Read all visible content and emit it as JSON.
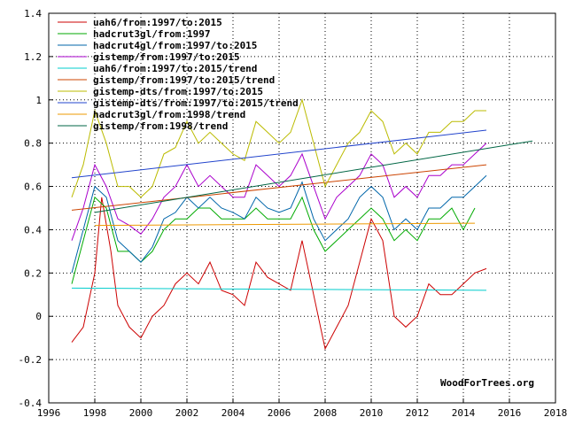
{
  "chart_data": {
    "type": "line",
    "title": "",
    "xlabel": "",
    "ylabel": "",
    "xlim": [
      1996,
      2018
    ],
    "ylim": [
      -0.4,
      1.4
    ],
    "x_ticks": [
      1996,
      1998,
      2000,
      2002,
      2004,
      2006,
      2008,
      2010,
      2012,
      2014,
      2016,
      2018
    ],
    "y_ticks": [
      -0.4,
      -0.2,
      0,
      0.2,
      0.4,
      0.6,
      0.8,
      1.0,
      1.2,
      1.4
    ],
    "x_tick_labels": [
      "1996",
      "1998",
      "2000",
      "2002",
      "2004",
      "2006",
      "2008",
      "2010",
      "2012",
      "2014",
      "2016",
      "2018"
    ],
    "y_tick_labels": [
      "-0.4",
      "-0.2",
      "0",
      "0.2",
      "0.4",
      "0.6",
      "0.8",
      "1",
      "1.2",
      "1.4"
    ],
    "grid": true,
    "legend_position": "top-left",
    "credit": "WoodForTrees.org",
    "series": [
      {
        "name": "uah6/from:1997/to:2015",
        "kind": "monthly",
        "color": "#cc0000",
        "x": [
          1997.0,
          1997.5,
          1998.0,
          1998.3,
          1998.7,
          1999.0,
          1999.5,
          2000.0,
          2000.5,
          2001.0,
          2001.5,
          2002.0,
          2002.5,
          2003.0,
          2003.5,
          2004.0,
          2004.5,
          2005.0,
          2005.5,
          2006.0,
          2006.5,
          2007.0,
          2007.5,
          2008.0,
          2008.5,
          2009.0,
          2009.5,
          2010.0,
          2010.5,
          2011.0,
          2011.5,
          2012.0,
          2012.5,
          2013.0,
          2013.5,
          2014.0,
          2014.5,
          2015.0
        ],
        "y": [
          -0.12,
          -0.05,
          0.2,
          0.55,
          0.3,
          0.05,
          -0.05,
          -0.1,
          0.0,
          0.05,
          0.15,
          0.2,
          0.15,
          0.25,
          0.12,
          0.1,
          0.05,
          0.25,
          0.18,
          0.15,
          0.12,
          0.35,
          0.1,
          -0.15,
          -0.05,
          0.05,
          0.25,
          0.45,
          0.35,
          0.0,
          -0.05,
          0.0,
          0.15,
          0.1,
          0.1,
          0.15,
          0.2,
          0.22
        ]
      },
      {
        "name": "hadcrut3gl/from:1997",
        "kind": "monthly",
        "color": "#00aa00",
        "x": [
          1997.0,
          1997.5,
          1998.0,
          1998.5,
          1999.0,
          1999.5,
          2000.0,
          2000.5,
          2001.0,
          2001.5,
          2002.0,
          2002.5,
          2003.0,
          2003.5,
          2004.0,
          2004.5,
          2005.0,
          2005.5,
          2006.0,
          2006.5,
          2007.0,
          2007.5,
          2008.0,
          2008.5,
          2009.0,
          2009.5,
          2010.0,
          2010.5,
          2011.0,
          2011.5,
          2012.0,
          2012.5,
          2013.0,
          2013.5,
          2014.0,
          2014.5
        ],
        "y": [
          0.15,
          0.35,
          0.55,
          0.5,
          0.3,
          0.3,
          0.25,
          0.3,
          0.4,
          0.45,
          0.45,
          0.5,
          0.5,
          0.45,
          0.45,
          0.45,
          0.5,
          0.45,
          0.45,
          0.45,
          0.55,
          0.4,
          0.3,
          0.35,
          0.4,
          0.45,
          0.5,
          0.45,
          0.35,
          0.4,
          0.35,
          0.45,
          0.45,
          0.5,
          0.4,
          0.5
        ]
      },
      {
        "name": "hadcrut4gl/from:1997/to:2015",
        "kind": "monthly",
        "color": "#0066aa",
        "x": [
          1997.0,
          1997.5,
          1998.0,
          1998.5,
          1999.0,
          1999.5,
          2000.0,
          2000.5,
          2001.0,
          2001.5,
          2002.0,
          2002.5,
          2003.0,
          2003.5,
          2004.0,
          2004.5,
          2005.0,
          2005.5,
          2006.0,
          2006.5,
          2007.0,
          2007.5,
          2008.0,
          2008.5,
          2009.0,
          2009.5,
          2010.0,
          2010.5,
          2011.0,
          2011.5,
          2012.0,
          2012.5,
          2013.0,
          2013.5,
          2014.0,
          2014.5,
          2015.0
        ],
        "y": [
          0.2,
          0.4,
          0.6,
          0.55,
          0.35,
          0.3,
          0.25,
          0.32,
          0.45,
          0.48,
          0.55,
          0.5,
          0.55,
          0.5,
          0.48,
          0.45,
          0.55,
          0.5,
          0.48,
          0.5,
          0.62,
          0.45,
          0.35,
          0.4,
          0.45,
          0.55,
          0.6,
          0.55,
          0.4,
          0.45,
          0.4,
          0.5,
          0.5,
          0.55,
          0.55,
          0.6,
          0.65
        ]
      },
      {
        "name": "gistemp/from:1997/to:2015",
        "kind": "monthly",
        "color": "#aa00cc",
        "x": [
          1997.0,
          1997.5,
          1998.0,
          1998.5,
          1999.0,
          1999.5,
          2000.0,
          2000.5,
          2001.0,
          2001.5,
          2002.0,
          2002.5,
          2003.0,
          2003.5,
          2004.0,
          2004.5,
          2005.0,
          2005.5,
          2006.0,
          2006.5,
          2007.0,
          2007.5,
          2008.0,
          2008.5,
          2009.0,
          2009.5,
          2010.0,
          2010.5,
          2011.0,
          2011.5,
          2012.0,
          2012.5,
          2013.0,
          2013.5,
          2014.0,
          2014.5,
          2015.0
        ],
        "y": [
          0.35,
          0.5,
          0.7,
          0.6,
          0.45,
          0.42,
          0.38,
          0.45,
          0.55,
          0.6,
          0.7,
          0.6,
          0.65,
          0.6,
          0.55,
          0.55,
          0.7,
          0.65,
          0.6,
          0.65,
          0.75,
          0.6,
          0.45,
          0.55,
          0.6,
          0.65,
          0.75,
          0.7,
          0.55,
          0.6,
          0.55,
          0.65,
          0.65,
          0.7,
          0.7,
          0.75,
          0.8
        ]
      },
      {
        "name": "uah6/from:1997/to:2015/trend",
        "kind": "trend",
        "color": "#00cccc",
        "x": [
          1997.0,
          2015.0
        ],
        "y": [
          0.13,
          0.12
        ]
      },
      {
        "name": "gistemp/from:1997/to:2015/trend",
        "kind": "trend",
        "color": "#cc4400",
        "x": [
          1997.0,
          2015.0
        ],
        "y": [
          0.49,
          0.7
        ]
      },
      {
        "name": "gistemp-dts/from:1997/to:2015",
        "kind": "monthly",
        "color": "#bbbb00",
        "x": [
          1997.0,
          1997.5,
          1998.0,
          1998.5,
          1999.0,
          1999.5,
          2000.0,
          2000.5,
          2001.0,
          2001.5,
          2002.0,
          2002.5,
          2003.0,
          2003.5,
          2004.0,
          2004.5,
          2005.0,
          2005.5,
          2006.0,
          2006.5,
          2007.0,
          2007.5,
          2008.0,
          2008.5,
          2009.0,
          2009.5,
          2010.0,
          2010.5,
          2011.0,
          2011.5,
          2012.0,
          2012.5,
          2013.0,
          2013.5,
          2014.0,
          2014.5,
          2015.0
        ],
        "y": [
          0.55,
          0.7,
          0.95,
          0.8,
          0.6,
          0.6,
          0.55,
          0.6,
          0.75,
          0.78,
          0.9,
          0.8,
          0.85,
          0.8,
          0.75,
          0.72,
          0.9,
          0.85,
          0.8,
          0.85,
          1.0,
          0.8,
          0.6,
          0.7,
          0.8,
          0.85,
          0.95,
          0.9,
          0.75,
          0.8,
          0.75,
          0.85,
          0.85,
          0.9,
          0.9,
          0.95,
          0.95
        ]
      },
      {
        "name": "gistemp-dts/from:1997/to:2015/trend",
        "kind": "trend",
        "color": "#2244cc",
        "x": [
          1997.0,
          2015.0
        ],
        "y": [
          0.64,
          0.86
        ]
      },
      {
        "name": "hadcrut3gl/from:1998/trend",
        "kind": "trend",
        "color": "#ee9900",
        "x": [
          1998.0,
          2014.5
        ],
        "y": [
          0.42,
          0.43
        ]
      },
      {
        "name": "gistemp/from:1998/trend",
        "kind": "trend",
        "color": "#006644",
        "x": [
          1998.0,
          2017.0
        ],
        "y": [
          0.48,
          0.81
        ]
      }
    ]
  }
}
